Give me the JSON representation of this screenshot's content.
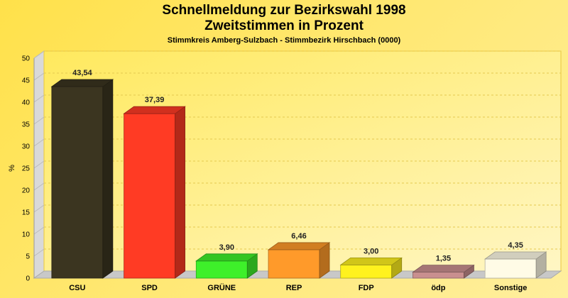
{
  "chart_data": {
    "type": "bar",
    "title": "Schnellmeldung zur Bezirkswahl 1998",
    "subtitle": "Zweitstimmen in Prozent",
    "caption": "Stimmkreis Amberg-Sulzbach - Stimmbezirk Hirschbach (0000)",
    "ylabel": "%",
    "xlabel": "",
    "ylim": [
      0,
      50
    ],
    "yticks": [
      0,
      5,
      10,
      15,
      20,
      25,
      30,
      35,
      40,
      45,
      50
    ],
    "grid": true,
    "legend": "none",
    "categories": [
      "CSU",
      "SPD",
      "GRÜNE",
      "REP",
      "FDP",
      "ödp",
      "Sonstige"
    ],
    "values": [
      43.54,
      37.39,
      3.9,
      6.46,
      3.0,
      1.35,
      4.35
    ],
    "value_labels": [
      "43,54",
      "37,39",
      "3,90",
      "6,46",
      "3,00",
      "1,35",
      "4,35"
    ],
    "colors": [
      "#3b3520",
      "#ff3b24",
      "#3ef02a",
      "#ff9a2a",
      "#fff21e",
      "#c98f8f",
      "#fffbe6"
    ]
  }
}
